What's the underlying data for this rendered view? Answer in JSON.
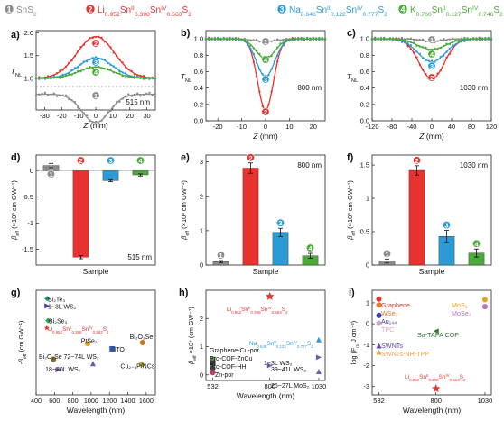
{
  "figure": {
    "legend": [
      {
        "num": "1",
        "label": "SnS",
        "sub": "2",
        "color": "#8c8c8c"
      },
      {
        "num": "2",
        "label": "Li",
        "sub": "0.952",
        "label2": "Sn",
        "sup2": "II",
        "sub2": "0.398",
        "label3": "Sn",
        "sup3": "IV",
        "sub3": "0.563",
        "label4": "S",
        "sub4": "2",
        "color": "#e8322e"
      },
      {
        "num": "3",
        "label": "Na",
        "sub": "0.648",
        "label2": "Sn",
        "sup2": "II",
        "sub2": "0.122",
        "label3": "Sn",
        "sup3": "IV",
        "sub3": "0.777",
        "label4": "S",
        "sub4": "2",
        "color": "#2a9bd6"
      },
      {
        "num": "4",
        "label": "K",
        "sub": "0.760",
        "label2": "Sn",
        "sup2": "II",
        "sub2": "0.127",
        "label3": "Sn",
        "sup3": "IV",
        "sub3": "0.746",
        "label4": "S",
        "sub4": "2",
        "color": "#4aab3a"
      }
    ],
    "text_labels": {
      "a": "a)",
      "b": "b)",
      "c": "c)",
      "d": "d)",
      "e": "e)",
      "f": "f)",
      "g": "g)",
      "h": "h)",
      "i": "i)",
      "z_axis": "Z (mm)",
      "tnl": "T",
      "tnl_sub": "NL",
      "beta": "β",
      "beta_sub": "eff",
      "beta_units": " (×10³ cm GW⁻¹)",
      "sample": "Sample",
      "wavelength": "Wavelength (nm)",
      "g_ylabel": "-β",
      "g_ylabel_sub": "eff",
      "g_ylabel_units": " (cm GW⁻¹)",
      "h_ylabel": "β",
      "h_ylabel_sub": "eff",
      "h_ylabel_units": " ×10⁴ (cm GW⁻¹)",
      "i_ylabel": "log (F",
      "i_ylabel_sub": "m",
      "i_ylabel_units": " J cm⁻²)",
      "nm515": "515 nm",
      "nm800": "800 nm",
      "nm1030": "1030 nm"
    }
  },
  "chart_data": [
    {
      "panel": "a",
      "type": "scatter",
      "title": "",
      "xlabel": "Z (mm)",
      "ylabel": "TNL",
      "annotation": "515 nm",
      "xlim": [
        -35,
        35
      ],
      "ylim": [
        0.8,
        2.05
      ],
      "xticks": [
        -30,
        -20,
        -10,
        0,
        10,
        20,
        30
      ],
      "yticks": [
        1.0,
        1.5,
        2.0
      ],
      "series": [
        {
          "id": "1",
          "color": "#8c8c8c",
          "shape": "peak",
          "amp": -0.07,
          "width": 8,
          "offset": -0.28
        },
        {
          "id": "2",
          "color": "#e8322e",
          "shape": "peak",
          "amp": 0.92,
          "width": 11,
          "offset": 0
        },
        {
          "id": "3",
          "color": "#2a9bd6",
          "shape": "peak",
          "amp": 0.45,
          "width": 10,
          "offset": 0
        },
        {
          "id": "4",
          "color": "#4aab3a",
          "shape": "peak",
          "amp": 0.25,
          "width": 10,
          "offset": 0
        }
      ]
    },
    {
      "panel": "b",
      "type": "scatter",
      "title": "",
      "xlabel": "Z (mm)",
      "ylabel": "TNL",
      "annotation": "800 nm",
      "xlim": [
        -25,
        25
      ],
      "ylim": [
        0,
        1.1
      ],
      "xticks": [
        -20,
        -10,
        0,
        10,
        20
      ],
      "yticks": [
        0.0,
        0.2,
        0.4,
        0.6,
        0.8,
        1.0
      ],
      "series": [
        {
          "id": "1",
          "color": "#8c8c8c",
          "shape": "peak",
          "amp": -0.03,
          "width": 5,
          "offset": 0
        },
        {
          "id": "2",
          "color": "#e8322e",
          "shape": "peak",
          "amp": -0.87,
          "width": 3.3,
          "offset": 0
        },
        {
          "id": "3",
          "color": "#2a9bd6",
          "shape": "peak",
          "amp": -0.46,
          "width": 3.8,
          "offset": 0
        },
        {
          "id": "4",
          "color": "#4aab3a",
          "shape": "peak",
          "amp": -0.24,
          "width": 4,
          "offset": 0
        }
      ]
    },
    {
      "panel": "c",
      "type": "scatter",
      "title": "",
      "xlabel": "Z (mm)",
      "ylabel": "TNL",
      "annotation": "1030 nm",
      "xlim": [
        -120,
        120
      ],
      "ylim": [
        0,
        1.1
      ],
      "xticks": [
        -120,
        -80,
        -40,
        0,
        40,
        80,
        120
      ],
      "yticks": [
        0.0,
        0.2,
        0.4,
        0.6,
        0.8,
        1.0
      ],
      "series": [
        {
          "id": "1",
          "color": "#8c8c8c",
          "shape": "peak",
          "amp": -0.03,
          "width": 20,
          "offset": 0
        },
        {
          "id": "2",
          "color": "#e8322e",
          "shape": "peak",
          "amp": -0.49,
          "width": 25,
          "offset": 0
        },
        {
          "id": "3",
          "color": "#2a9bd6",
          "shape": "peak",
          "amp": -0.28,
          "width": 28,
          "offset": 0
        },
        {
          "id": "4",
          "color": "#4aab3a",
          "shape": "peak",
          "amp": -0.13,
          "width": 28,
          "offset": 0
        }
      ]
    },
    {
      "panel": "d",
      "type": "bar",
      "xlabel": "Sample",
      "ylabel": "βeff (×10³ cm GW⁻¹)",
      "annotation": "515 nm",
      "categories": [
        "1",
        "2",
        "3",
        "4"
      ],
      "values": [
        0.1,
        -1.65,
        -0.19,
        -0.08
      ],
      "errors": [
        0.04,
        0.03,
        0.02,
        0.02
      ],
      "colors": [
        "#8c8c8c",
        "#e8322e",
        "#2a9bd6",
        "#4aab3a"
      ],
      "ylim": [
        -1.8,
        0.3
      ],
      "yticks": [
        0.0,
        -0.5,
        -1.0,
        -1.5
      ]
    },
    {
      "panel": "e",
      "type": "bar",
      "xlabel": "Sample",
      "ylabel": "βeff (×10³ cm GW⁻¹)",
      "annotation": "800 nm",
      "categories": [
        "1",
        "2",
        "3",
        "4"
      ],
      "values": [
        0.1,
        2.82,
        0.95,
        0.27
      ],
      "errors": [
        0.03,
        0.15,
        0.12,
        0.07
      ],
      "colors": [
        "#8c8c8c",
        "#e8322e",
        "#2a9bd6",
        "#4aab3a"
      ],
      "ylim": [
        0,
        3.2
      ],
      "yticks": [
        0,
        1,
        2,
        3
      ]
    },
    {
      "panel": "f",
      "type": "bar",
      "xlabel": "Sample",
      "ylabel": "βeff (×10³ cm GW⁻¹)",
      "annotation": "1030 nm",
      "categories": [
        "1",
        "2",
        "3",
        "4"
      ],
      "values": [
        0.06,
        1.42,
        0.43,
        0.18
      ],
      "errors": [
        0.03,
        0.07,
        0.09,
        0.06
      ],
      "colors": [
        "#8c8c8c",
        "#e8322e",
        "#2a9bd6",
        "#4aab3a"
      ],
      "ylim": [
        0,
        1.65
      ],
      "yticks": [
        0.0,
        0.5,
        1.0,
        1.5
      ]
    },
    {
      "panel": "g",
      "type": "scatter",
      "xlabel": "Wavelength (nm)",
      "ylabel": "-βeff (cm GW⁻¹)",
      "xlim": [
        400,
        1700
      ],
      "xticks": [
        400,
        600,
        800,
        1000,
        1200,
        1400,
        1600
      ],
      "points": [
        {
          "label": "Bi₂Te₃",
          "x": 520,
          "y": 0.92,
          "color": "#1a9a78",
          "shape": "diamond",
          "lx": 528,
          "ly": 0.92
        },
        {
          "label": "1~3L WS₂",
          "x": 520,
          "y": 0.85,
          "color": "#4a3ab8",
          "shape": "tri-right",
          "lx": 528,
          "ly": 0.85
        },
        {
          "label": "Bi₂Se₃",
          "x": 530,
          "y": 0.71,
          "color": "#2aa043",
          "shape": "diamond",
          "lx": 538,
          "ly": 0.71
        },
        {
          "label": "LixSnII SnIV S₂",
          "x": 515,
          "y": 0.64,
          "color": "#e8322e",
          "shape": "star",
          "lx": 528,
          "ly": 0.64
        },
        {
          "label": "PtSe₂",
          "x": 960,
          "y": 0.49,
          "color": "#e0a21e",
          "shape": "circle",
          "lx": 890,
          "ly": 0.52
        },
        {
          "label": "ITO",
          "x": 1230,
          "y": 0.44,
          "color": "#2b56b0",
          "shape": "square",
          "lx": 1250,
          "ly": 0.44
        },
        {
          "label": "Bi₂O₂Se",
          "x": 1560,
          "y": 0.5,
          "color": "#c97a1e",
          "shape": "circle",
          "lx": 1420,
          "ly": 0.56
        },
        {
          "label": "Bi₂O₂Se",
          "x": 590,
          "y": 0.34,
          "color": "#8a6d2a",
          "shape": "circle",
          "lx": 430,
          "ly": 0.37
        },
        {
          "label": "72~74L WS₂",
          "x": 1020,
          "y": 0.3,
          "color": "#6a5ab8",
          "shape": "tri-up",
          "lx": 700,
          "ly": 0.37
        },
        {
          "label": "18~20L WS₂",
          "x": 640,
          "y": 0.24,
          "color": "#7a4ab0",
          "shape": "tri-right",
          "lx": 500,
          "ly": 0.25
        },
        {
          "label": "Cu₂₋ₓP/NCs",
          "x": 1550,
          "y": 0.29,
          "color": "#b7a234",
          "shape": "circle",
          "lx": 1320,
          "ly": 0.28
        }
      ]
    },
    {
      "panel": "h",
      "type": "scatter",
      "xlabel": "Wavelength (nm)",
      "ylabel": "βeff ×10⁴ (cm GW⁻¹)",
      "xlim": [
        500,
        1060
      ],
      "xticks": [
        532,
        800,
        1030
      ],
      "ylim": [
        -0.2,
        3.0
      ],
      "yticks": [
        0,
        1,
        2
      ],
      "points": [
        {
          "label": "Li-Sn-S",
          "x": 800,
          "y": 2.78,
          "color": "#e8322e",
          "shape": "star"
        },
        {
          "label": "Na-Sn-S",
          "x": 1030,
          "y": 1.25,
          "color": "#2a9bd6",
          "shape": "tri-up"
        },
        {
          "label": "Graphene-Cu-por",
          "x": 532,
          "y": 0.55,
          "color": "#6a9a60",
          "shape": "square"
        },
        {
          "label": "Pro-COF-ZnCu",
          "x": 532,
          "y": 0.42,
          "color": "#333333",
          "shape": "square"
        },
        {
          "label": "1~3L WS₂",
          "x": 800,
          "y": 0.33,
          "color": "#6a5ab8",
          "shape": "tri-right"
        },
        {
          "label": "Pro-COF-HH",
          "x": 532,
          "y": 0.23,
          "color": "#444444",
          "shape": "circle"
        },
        {
          "label": "Zn-por",
          "x": 532,
          "y": 0.08,
          "color": "#c04060",
          "shape": "circle"
        },
        {
          "label": "39~41L WS₂",
          "x": 1030,
          "y": 0.62,
          "color": "#6a5ab8",
          "shape": "tri-right"
        },
        {
          "label": "25~27L MoS₂",
          "x": 1030,
          "y": 0.12,
          "color": "#6a5ab8",
          "shape": "tri-up"
        }
      ]
    },
    {
      "panel": "i",
      "type": "scatter",
      "xlabel": "Wavelength (nm)",
      "ylabel": "log (Fm J cm⁻²)",
      "xlim": [
        500,
        1060
      ],
      "xticks": [
        532,
        800,
        1030
      ],
      "ylim": [
        -3.4,
        1.6
      ],
      "yticks": [
        1,
        0,
        -1,
        -2,
        -3
      ],
      "points": [
        {
          "label": "Graphene",
          "x": 532,
          "y": 1.18,
          "color": "#e8322e",
          "shape": "circle"
        },
        {
          "label": "WSe₂",
          "x": 532,
          "y": 0.9,
          "color": "#e07a30",
          "shape": "circle"
        },
        {
          "label": "Au₁₄₄",
          "x": 532,
          "y": 0.4,
          "color": "#3a3ab0",
          "shape": "circle"
        },
        {
          "label": "TPC",
          "x": 532,
          "y": 0.02,
          "color": "#d3a4c0",
          "shape": "circle"
        },
        {
          "label": "Sa-TAPA COF",
          "x": 800,
          "y": -0.35,
          "color": "#2f7a2f",
          "shape": "tri-left"
        },
        {
          "label": "SWNTs",
          "x": 532,
          "y": -1.05,
          "color": "#5a4ab0",
          "shape": "tri-up"
        },
        {
          "label": "SWNTs-NH-TPP",
          "x": 532,
          "y": -1.35,
          "color": "#e9a24a",
          "shape": "tri-up"
        },
        {
          "label": "MoS₂",
          "x": 1030,
          "y": 1.15,
          "color": "#e0a21e",
          "shape": "circle"
        },
        {
          "label": "MoSe₂",
          "x": 1030,
          "y": 0.82,
          "color": "#c070c0",
          "shape": "circle"
        },
        {
          "label": "Li-Sn-S",
          "x": 800,
          "y": -3.1,
          "color": "#e8322e",
          "shape": "star"
        }
      ]
    }
  ]
}
